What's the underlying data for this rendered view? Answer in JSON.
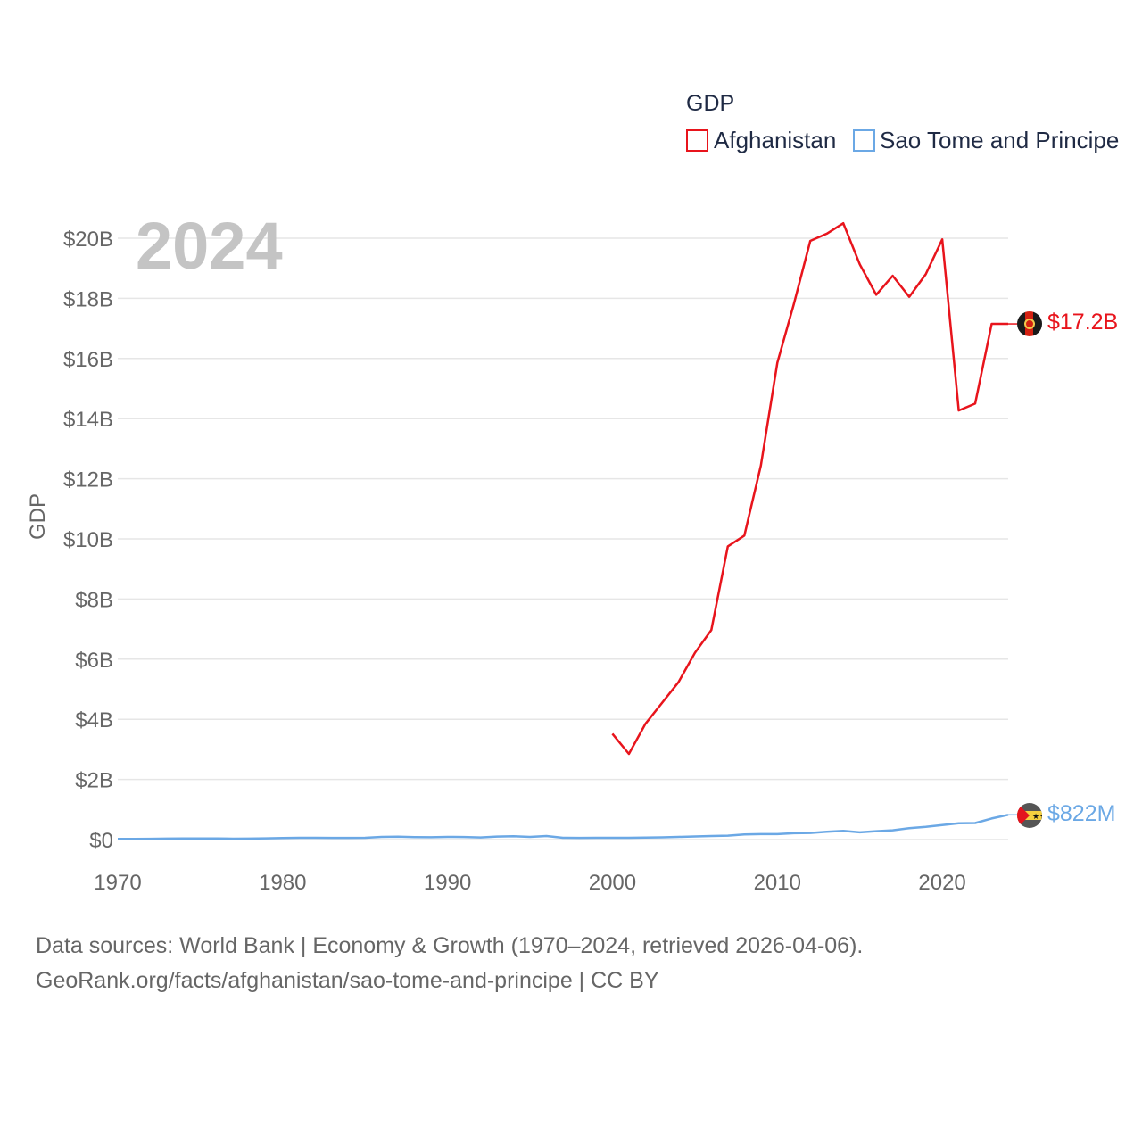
{
  "colors": {
    "afghanistan": "#e8141c",
    "sao_tome": "#6ba8e5"
  },
  "legend": {
    "title": "GDP",
    "items": [
      "Afghanistan",
      "Sao Tome and Principe"
    ]
  },
  "year_watermark": "2024",
  "footer": {
    "line1": "Data sources: World Bank | Economy & Growth (1970–2024, retrieved 2026-04-06).",
    "line2": "GeoRank.org/facts/afghanistan/sao-tome-and-principe | CC BY"
  },
  "chart_data": {
    "type": "line",
    "title": "",
    "xlabel": "",
    "ylabel": "GDP",
    "xlim": [
      1970,
      2024
    ],
    "ylim": [
      0,
      20000000000
    ],
    "x_ticks": [
      1970,
      1980,
      1990,
      2000,
      2010,
      2020
    ],
    "y_ticks": [
      0,
      2000000000,
      4000000000,
      6000000000,
      8000000000,
      10000000000,
      12000000000,
      14000000000,
      16000000000,
      18000000000,
      20000000000
    ],
    "y_tick_labels": [
      "$0",
      "$2B",
      "$4B",
      "$6B",
      "$8B",
      "$10B",
      "$12B",
      "$14B",
      "$16B",
      "$18B",
      "$20B"
    ],
    "series": [
      {
        "name": "Afghanistan",
        "end_label": "$17.2B",
        "x": [
          2000,
          2001,
          2002,
          2003,
          2004,
          2005,
          2006,
          2007,
          2008,
          2009,
          2010,
          2011,
          2012,
          2013,
          2014,
          2015,
          2016,
          2017,
          2018,
          2019,
          2020,
          2021,
          2022,
          2023,
          2024
        ],
        "values": [
          3520000000,
          2850000000,
          3850000000,
          4540000000,
          5230000000,
          6210000000,
          6970000000,
          9750000000,
          10110000000,
          12440000000,
          15860000000,
          17800000000,
          19910000000,
          20150000000,
          20500000000,
          19130000000,
          18120000000,
          18750000000,
          18050000000,
          18800000000,
          19960000000,
          14270000000,
          14500000000,
          17150000000,
          17150000000
        ]
      },
      {
        "name": "Sao Tome and Principe",
        "end_label": "$822M",
        "x": [
          1970,
          1971,
          1972,
          1973,
          1974,
          1975,
          1976,
          1977,
          1978,
          1979,
          1980,
          1981,
          1982,
          1983,
          1984,
          1985,
          1986,
          1987,
          1988,
          1989,
          1990,
          1991,
          1992,
          1993,
          1994,
          1995,
          1996,
          1997,
          1998,
          1999,
          2000,
          2001,
          2002,
          2003,
          2004,
          2005,
          2006,
          2007,
          2008,
          2009,
          2010,
          2011,
          2012,
          2013,
          2014,
          2015,
          2016,
          2017,
          2018,
          2019,
          2020,
          2021,
          2022,
          2023,
          2024
        ],
        "values": [
          20000000,
          22000000,
          26000000,
          33000000,
          38000000,
          38000000,
          35000000,
          30000000,
          33000000,
          42000000,
          52000000,
          58000000,
          58000000,
          55000000,
          55000000,
          58000000,
          90000000,
          95000000,
          80000000,
          78000000,
          90000000,
          85000000,
          70000000,
          100000000,
          110000000,
          90000000,
          120000000,
          60000000,
          55000000,
          60000000,
          60000000,
          60000000,
          65000000,
          75000000,
          90000000,
          105000000,
          120000000,
          130000000,
          170000000,
          180000000,
          180000000,
          210000000,
          220000000,
          260000000,
          290000000,
          240000000,
          280000000,
          310000000,
          380000000,
          420000000,
          480000000,
          540000000,
          550000000,
          700000000,
          822000000
        ]
      }
    ]
  }
}
